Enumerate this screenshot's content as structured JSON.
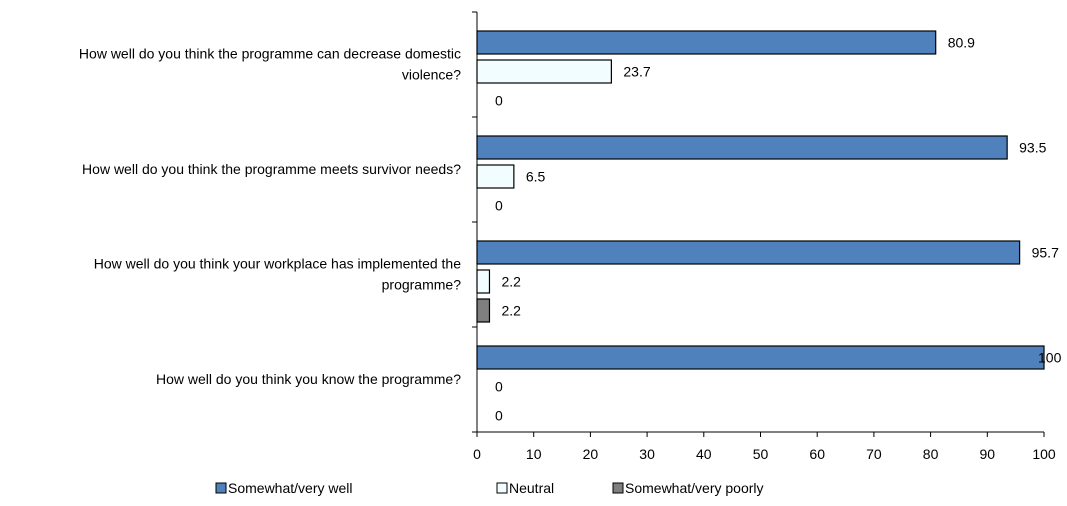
{
  "chart_data": {
    "type": "bar",
    "orientation": "horizontal",
    "categories": [
      "How well do you think the programme can decrease domestic violence?",
      "How well do you think the programme meets survivor needs?",
      "How well do you think your workplace has implemented the programme?",
      "How well do you think you know the programme?"
    ],
    "series": [
      {
        "name": "Somewhat/very well",
        "color": "#4f81bd",
        "values": [
          80.9,
          93.5,
          95.7,
          100
        ]
      },
      {
        "name": "Neutral",
        "color": "#f2fdff",
        "values": [
          23.7,
          6.5,
          2.2,
          0
        ]
      },
      {
        "name": "Somewhat/very poorly",
        "color": "#7f7f7f",
        "values": [
          0,
          0,
          2.2,
          0
        ]
      }
    ],
    "xlim": [
      0,
      100
    ],
    "xticks": [
      0,
      10,
      20,
      30,
      40,
      50,
      60,
      70,
      80,
      90,
      100
    ],
    "grid": false,
    "legend_position": "bottom",
    "title": "",
    "xlabel": "",
    "ylabel": ""
  }
}
